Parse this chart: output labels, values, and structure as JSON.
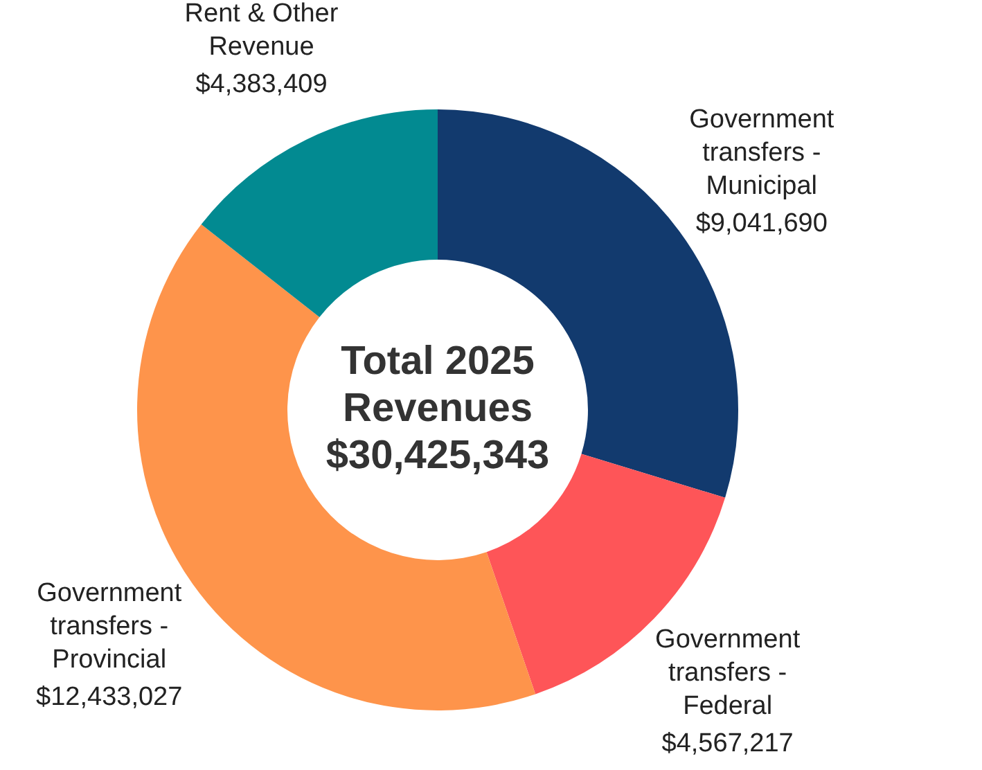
{
  "chart_data": {
    "type": "donut",
    "title": "Total 2025 Revenues $30,425,343",
    "categories": [
      "Government transfers - Municipal",
      "Government transfers - Federal",
      "Government transfers - Provincial",
      "Rent & Other Revenue"
    ],
    "values": [
      9041690,
      4567217,
      12433027,
      4383409
    ],
    "value_labels": [
      "$9,041,690",
      "$4,567,217",
      "$12,433,027",
      "$4,383,409"
    ],
    "colors": [
      "#123a6e",
      "#fe5558",
      "#fe944b",
      "#028a91"
    ],
    "legend": false
  }
}
